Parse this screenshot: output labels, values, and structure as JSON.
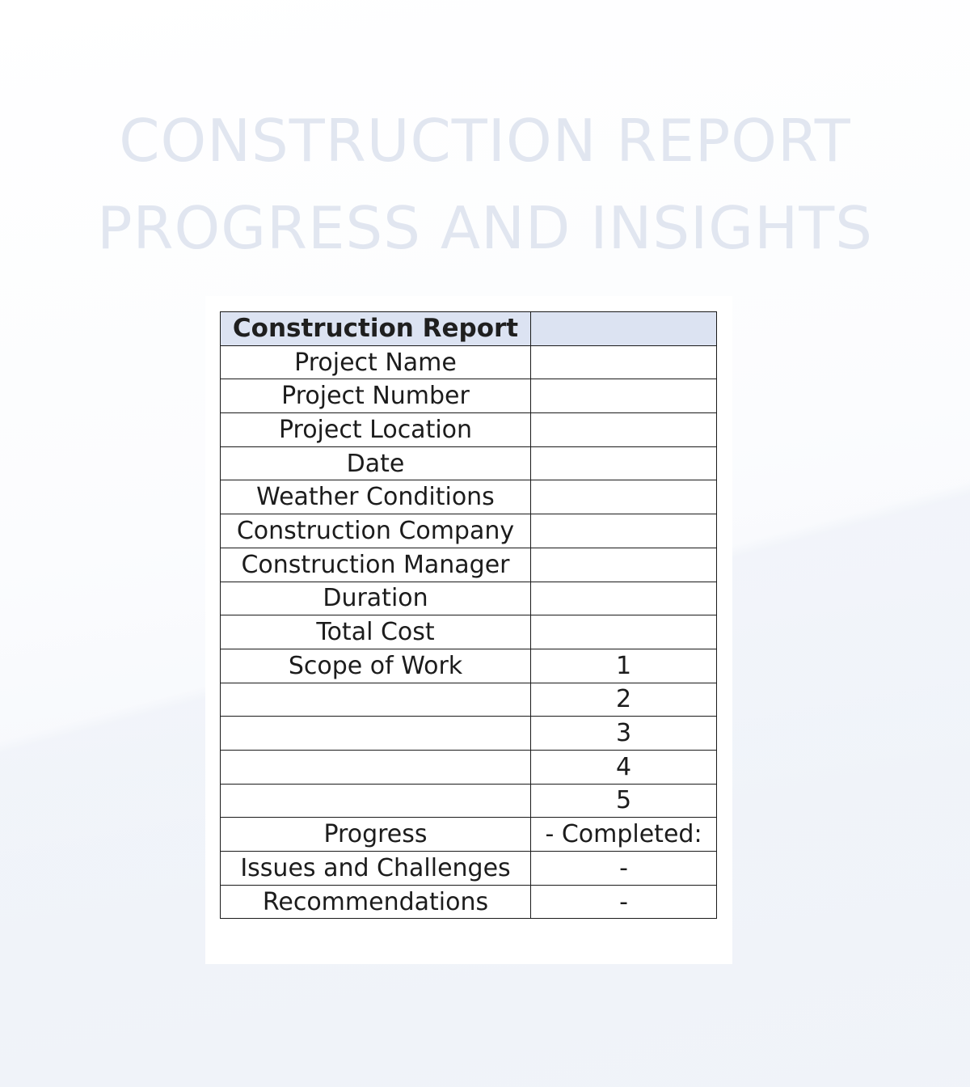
{
  "title": {
    "line1": "CONSTRUCTION REPORT",
    "line2": "PROGRESS AND INSIGHTS"
  },
  "table": {
    "header": {
      "label": "Construction Report",
      "value": ""
    },
    "rows": [
      {
        "label": "Project Name",
        "value": ""
      },
      {
        "label": "Project Number",
        "value": ""
      },
      {
        "label": "Project Location",
        "value": ""
      },
      {
        "label": "Date",
        "value": ""
      },
      {
        "label": "Weather Conditions",
        "value": ""
      },
      {
        "label": "Construction Company",
        "value": ""
      },
      {
        "label": "Construction Manager",
        "value": ""
      },
      {
        "label": "Duration",
        "value": ""
      },
      {
        "label": "Total Cost",
        "value": ""
      },
      {
        "label": "Scope of Work",
        "value": "1"
      },
      {
        "label": "",
        "value": "2"
      },
      {
        "label": "",
        "value": "3"
      },
      {
        "label": "",
        "value": "4"
      },
      {
        "label": "",
        "value": "5"
      },
      {
        "label": "Progress",
        "value": "- Completed:"
      },
      {
        "label": "Issues and Challenges",
        "value": "-"
      },
      {
        "label": "Recommendations",
        "value": "-"
      }
    ]
  }
}
